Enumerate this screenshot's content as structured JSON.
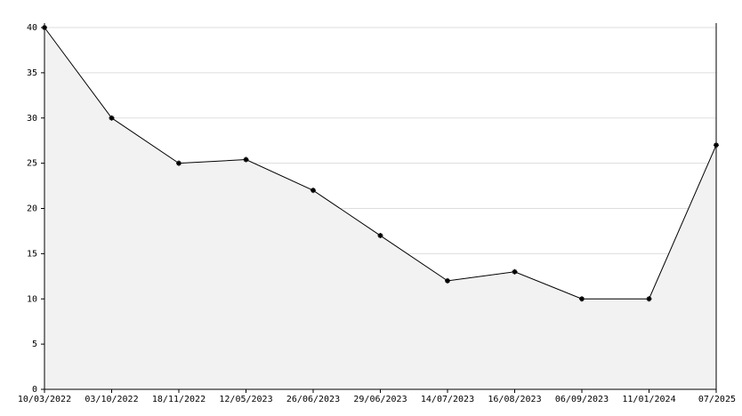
{
  "chart_data": {
    "type": "line",
    "categories": [
      "10/03/2022",
      "03/10/2022",
      "18/11/2022",
      "12/05/2023",
      "26/06/2023",
      "29/06/2023",
      "14/07/2023",
      "16/08/2023",
      "06/09/2023",
      "11/01/2024",
      "07/2025"
    ],
    "values": [
      40,
      30,
      25,
      25.4,
      22,
      17,
      12,
      13,
      10,
      10,
      27
    ],
    "color": "#000000",
    "area_color": "#f2f2f2",
    "ylim": [
      0,
      40
    ],
    "yticks": [
      0,
      5,
      10,
      15,
      20,
      25,
      30,
      35,
      40
    ],
    "grid": true
  }
}
